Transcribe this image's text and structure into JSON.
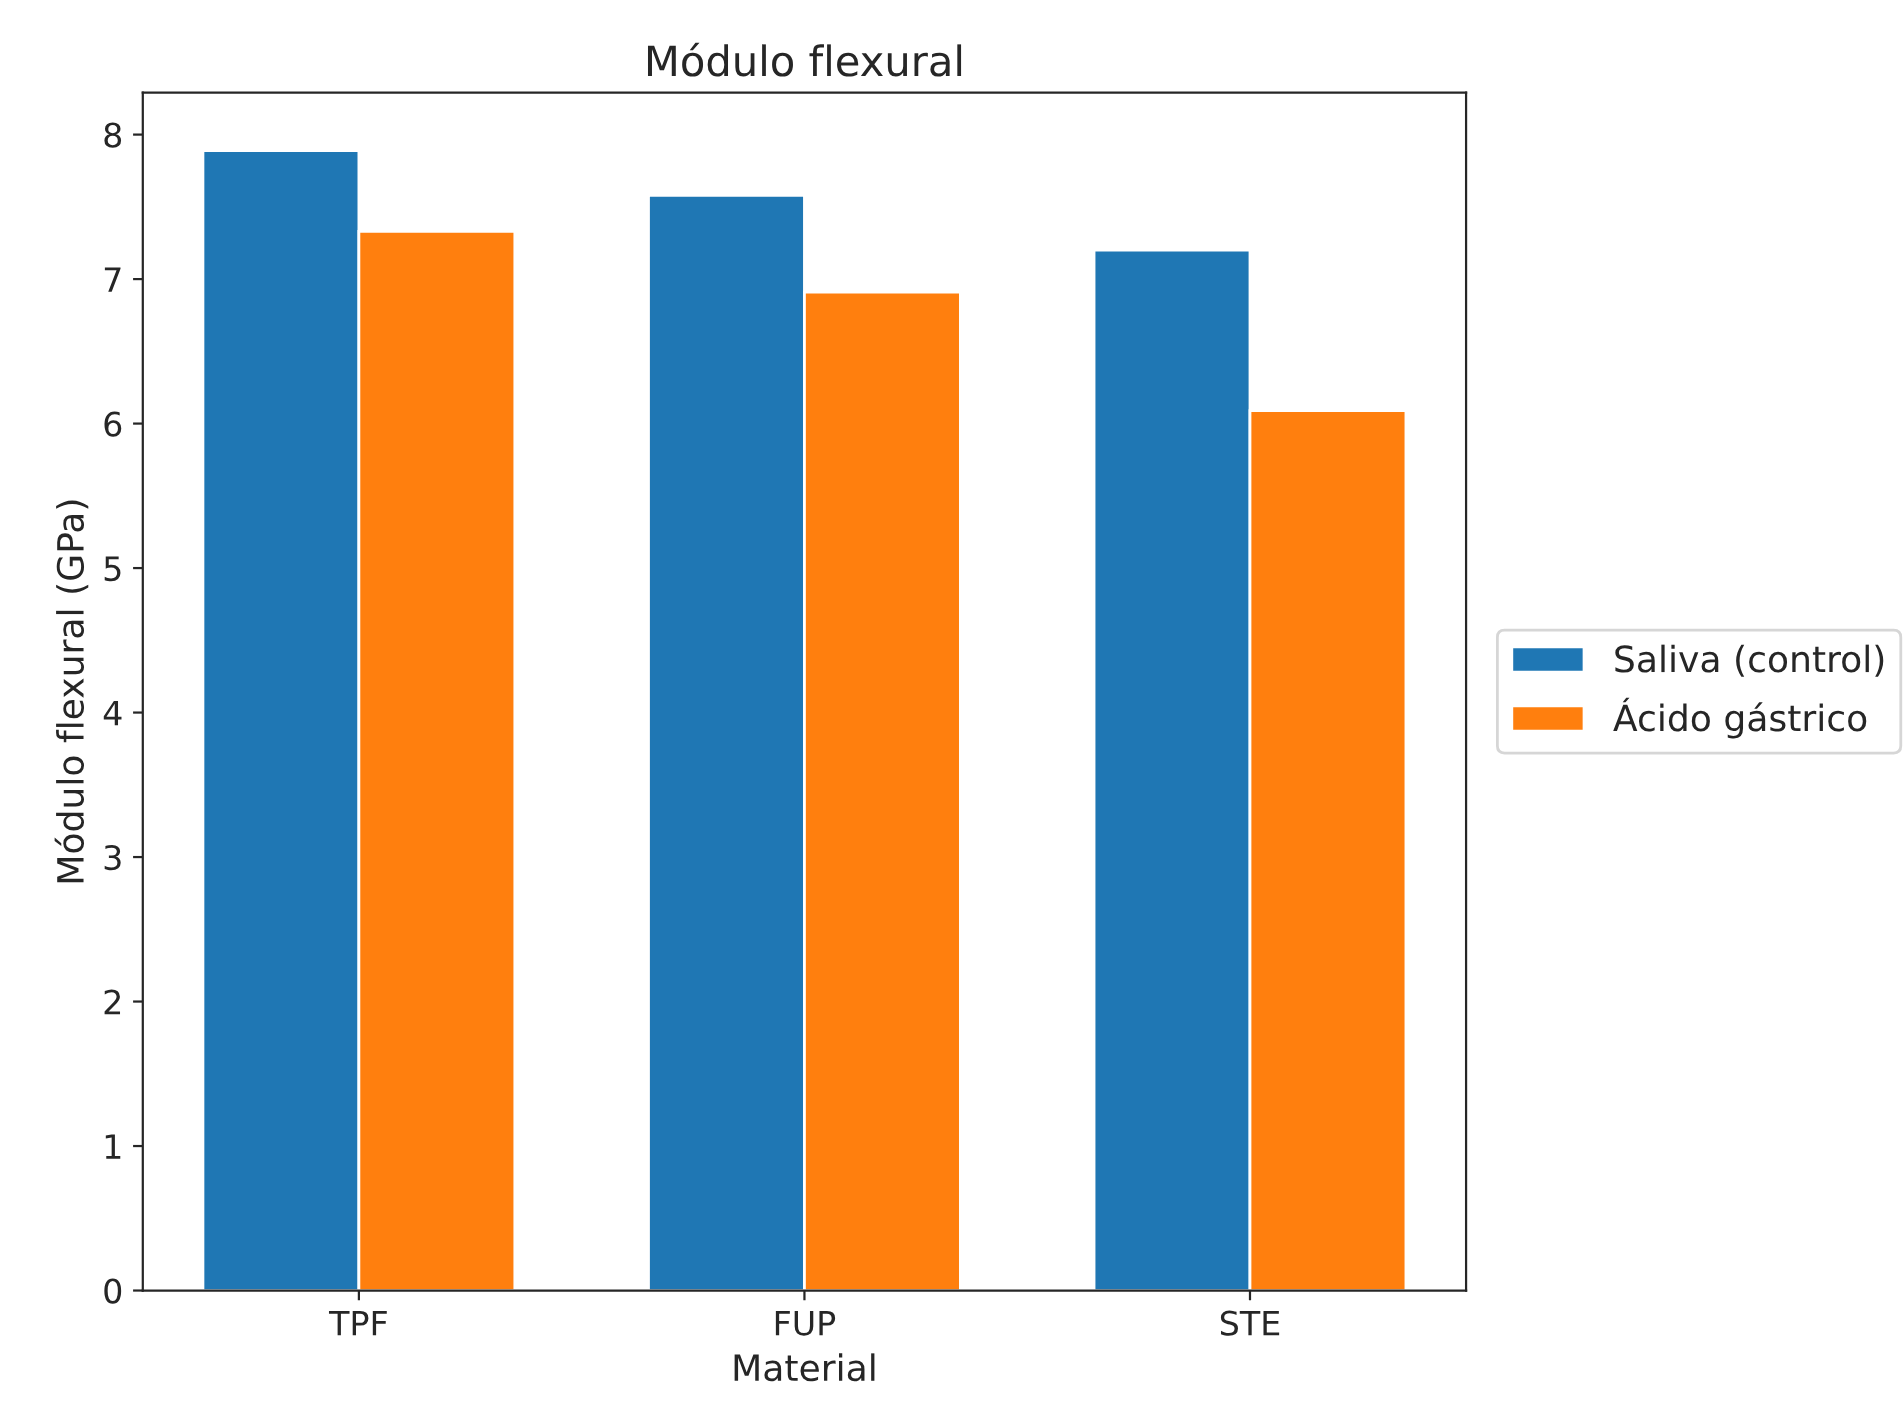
{
  "chart_data": {
    "type": "bar",
    "title": "Módulo flexural",
    "xlabel": "Material",
    "ylabel": "Módulo flexural (GPa)",
    "categories": [
      "TPF",
      "FUP",
      "STE"
    ],
    "series": [
      {
        "name": "Saliva (control)",
        "color": "#1f77b4",
        "values": [
          7.89,
          7.58,
          7.2
        ]
      },
      {
        "name": "Ácido gástrico",
        "color": "#ff7f0e",
        "values": [
          7.33,
          6.91,
          6.09
        ]
      }
    ],
    "ylim": [
      0,
      8.29
    ],
    "yticks": [
      0,
      1,
      2,
      3,
      4,
      5,
      6,
      7,
      8
    ],
    "grid": false,
    "legend": "right"
  }
}
